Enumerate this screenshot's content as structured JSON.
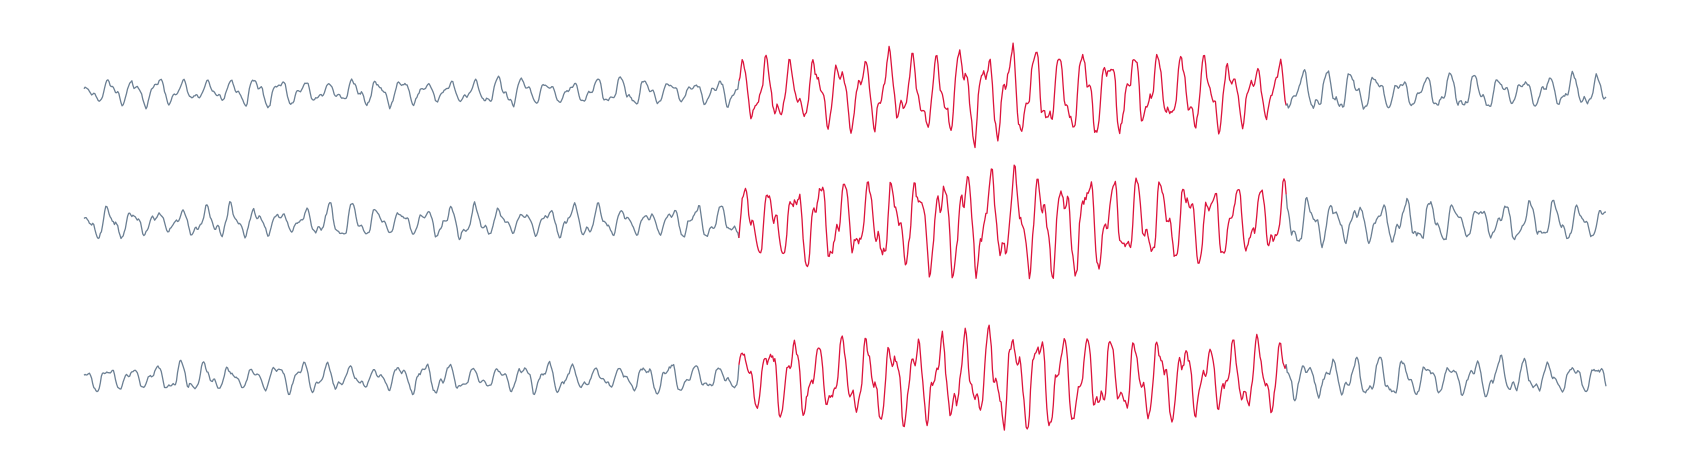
{
  "chart_data": {
    "type": "line",
    "title": "",
    "xlabel": "",
    "ylabel": "",
    "grid": false,
    "axes_visible": false,
    "legend": "none",
    "x_range": [
      0,
      1
    ],
    "highlight_range": [
      0.43,
      0.79
    ],
    "colors": {
      "baseline": "#6b7f93",
      "highlight": "#dc143c"
    },
    "series": [
      {
        "points": 1400,
        "amplitude": 0.12,
        "burst_amplitude": 0.42,
        "seed": 11
      },
      {
        "points": 1400,
        "amplitude": 0.14,
        "burst_amplitude": 0.48,
        "seed": 23
      },
      {
        "points": 1400,
        "amplitude": 0.13,
        "burst_amplitude": 0.45,
        "seed": 37
      }
    ]
  }
}
